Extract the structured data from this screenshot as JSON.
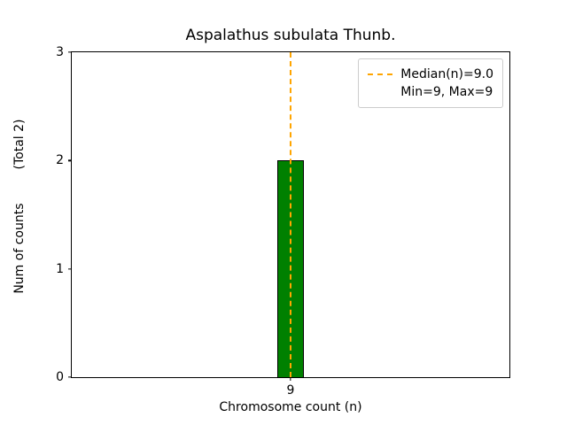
{
  "chart_data": {
    "type": "bar",
    "title": "Aspalathus subulata Thunb.",
    "xlabel": "Chromosome count (n)",
    "ylabel_main": "Num of counts",
    "ylabel_total": "(Total 2)",
    "categories": [
      "9"
    ],
    "values": [
      2
    ],
    "ylim": [
      0,
      3
    ],
    "yticks": [
      0,
      1,
      2,
      3
    ],
    "xticks": [
      "9"
    ],
    "grid": false,
    "bar_color": "#008000",
    "bar_edge_color": "#000000",
    "median_line": {
      "value": 9.0,
      "color": "#ffa500",
      "style": "dashed",
      "orientation": "vertical"
    },
    "legend": {
      "position": "upper right",
      "items": [
        {
          "label": "Median(n)=9.0",
          "sample": "dashed-orange-line"
        },
        {
          "label": "Min=9, Max=9",
          "sample": "none"
        }
      ]
    }
  }
}
